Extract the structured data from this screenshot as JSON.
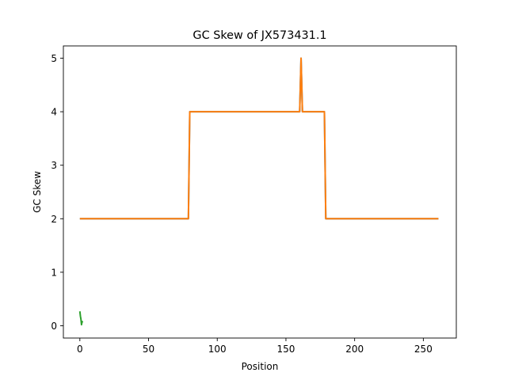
{
  "chart_data": {
    "type": "line",
    "title": "GC Skew of JX573431.1",
    "xlabel": "Position",
    "ylabel": "GC Skew",
    "xlim": [
      -12,
      274
    ],
    "ylim": [
      -0.23,
      5.23
    ],
    "xticks": [
      0,
      50,
      100,
      150,
      200,
      250
    ],
    "yticks": [
      0,
      1,
      2,
      3,
      4,
      5
    ],
    "grid": false,
    "series": [
      {
        "color": "#2ca02c",
        "x": [
          0,
          0.4,
          0.8,
          1.2,
          1.6,
          2.0
        ],
        "y": [
          0.27,
          0.18,
          0.12,
          0.02,
          0.08,
          0.06
        ]
      },
      {
        "color": "#1f77b4",
        "x": [
          0,
          79,
          80,
          160,
          160.5,
          161,
          162,
          178,
          179,
          261
        ],
        "y": [
          2,
          2,
          4,
          4,
          4.5,
          5,
          4,
          4,
          2,
          2
        ]
      },
      {
        "color": "#ff7f0e",
        "x": [
          0,
          79,
          80,
          160,
          160.5,
          161,
          162,
          178,
          179,
          261
        ],
        "y": [
          2,
          2,
          4,
          4,
          4.5,
          5,
          4,
          4,
          2,
          2
        ]
      }
    ]
  }
}
